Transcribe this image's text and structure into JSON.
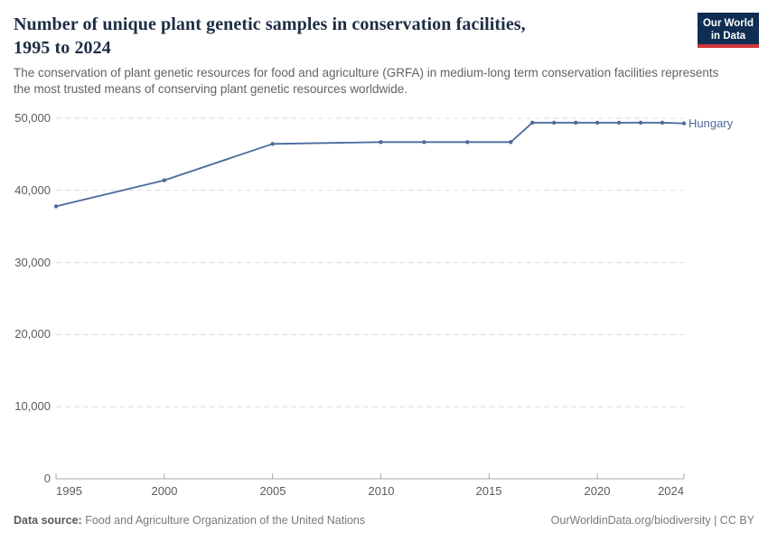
{
  "header": {
    "title_line1": "Number of unique plant genetic samples in conservation facilities,",
    "title_line2": "1995 to 2024",
    "subtitle": "The conservation of plant genetic resources for food and agriculture (GRFA) in medium-long term conservation facilities represents the most trusted means of conserving plant genetic resources worldwide.",
    "logo": {
      "line1": "Our World",
      "line2": "in Data"
    }
  },
  "chart_data": {
    "type": "line",
    "title": "Number of unique plant genetic samples in conservation facilities, 1995 to 2024",
    "x": [
      1995,
      2000,
      2005,
      2010,
      2012,
      2014,
      2016,
      2017,
      2018,
      2019,
      2020,
      2021,
      2022,
      2023,
      2024
    ],
    "series": [
      {
        "name": "Hungary",
        "color": "#4c6a9c",
        "values": [
          37800,
          41400,
          46450,
          46700,
          46700,
          46700,
          46700,
          49400,
          49400,
          49400,
          49400,
          49400,
          49400,
          49400,
          49300
        ]
      }
    ],
    "xlabel": "",
    "ylabel": "",
    "xlim": [
      1995,
      2024
    ],
    "ylim": [
      0,
      50000
    ],
    "x_tick_values": [
      1995,
      2000,
      2005,
      2010,
      2015,
      2020,
      2024
    ],
    "x_tick_labels": [
      "1995",
      "2000",
      "2005",
      "2010",
      "2015",
      "2020",
      "2024"
    ],
    "y_tick_values": [
      0,
      10000,
      20000,
      30000,
      40000,
      50000
    ],
    "y_tick_labels": [
      "0",
      "10,000",
      "20,000",
      "30,000",
      "40,000",
      "50,000"
    ],
    "grid": "horizontal-dashed",
    "legend": "line-end-label",
    "line_end_label": "Hungary"
  },
  "footer": {
    "source_label": "Data source:",
    "source_text": "Food and Agriculture Organization of the United Nations",
    "attribution": "OurWorldinData.org/biodiversity | CC BY"
  },
  "colors": {
    "series": "#4c6a9c",
    "title": "#1d2d44",
    "subtitle": "#636363",
    "axis_text": "#5b5b5b",
    "gridline": "#dcdcdc",
    "axis_line": "#a8a8a8",
    "footer_text": "#7a7a7a",
    "logo_bg": "#102e54",
    "logo_red": "#d1353b"
  }
}
